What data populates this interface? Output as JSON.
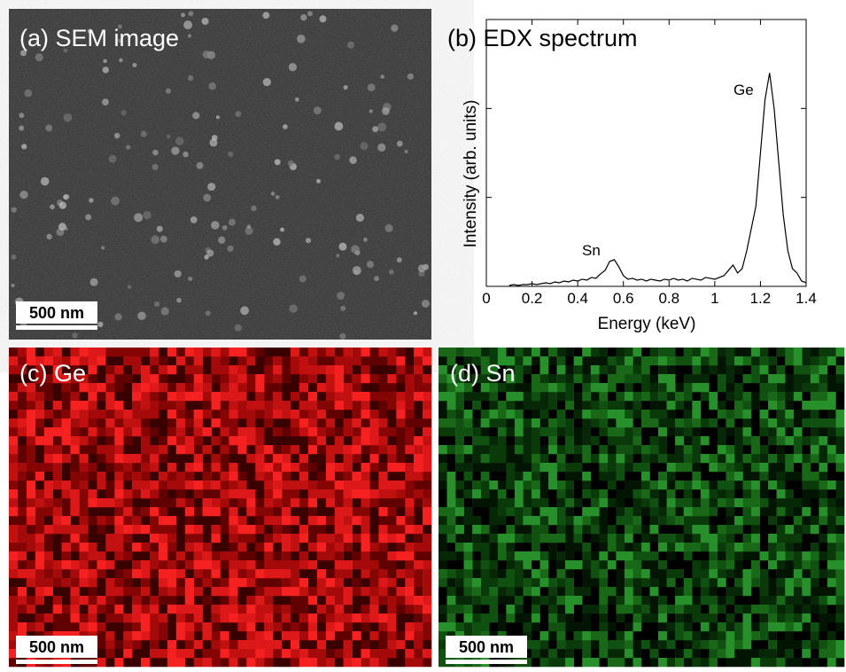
{
  "panels": {
    "a": {
      "label": "(a) SEM image",
      "scale_bar": "500 nm"
    },
    "c": {
      "label": "(c) Ge",
      "scale_bar": "500 nm"
    },
    "d": {
      "label": "(d) Sn",
      "scale_bar": "500 nm"
    }
  },
  "chart_data": {
    "type": "line",
    "title": "(b) EDX spectrum",
    "x_label": "Energy (keV)",
    "y_label": "Intensity (arb. units)",
    "annotations": [
      "Sn",
      "Ge"
    ],
    "xlim": [
      0,
      1.4
    ],
    "xticks": [
      0,
      0.2,
      0.4,
      0.6,
      0.8,
      1,
      1.2,
      1.4
    ],
    "ylim": [
      0,
      3
    ],
    "yticks": [
      1,
      2
    ],
    "ytick_labels": false,
    "color": "#000000",
    "x": [
      0.1,
      0.12,
      0.14,
      0.16,
      0.18,
      0.2,
      0.22,
      0.24,
      0.26,
      0.28,
      0.3,
      0.32,
      0.34,
      0.36,
      0.38,
      0.4,
      0.42,
      0.44,
      0.46,
      0.48,
      0.5,
      0.52,
      0.54,
      0.56,
      0.58,
      0.6,
      0.62,
      0.64,
      0.66,
      0.68,
      0.7,
      0.72,
      0.74,
      0.76,
      0.78,
      0.8,
      0.82,
      0.84,
      0.86,
      0.88,
      0.9,
      0.92,
      0.94,
      0.96,
      0.98,
      1.0,
      1.02,
      1.04,
      1.06,
      1.08,
      1.1,
      1.12,
      1.14,
      1.16,
      1.18,
      1.2,
      1.22,
      1.24,
      1.26,
      1.28,
      1.3,
      1.32,
      1.34,
      1.36,
      1.38,
      1.4
    ],
    "values": [
      0.01,
      0.02,
      0.01,
      0.02,
      0.02,
      0.03,
      0.02,
      0.03,
      0.04,
      0.03,
      0.05,
      0.04,
      0.06,
      0.05,
      0.07,
      0.06,
      0.08,
      0.07,
      0.1,
      0.09,
      0.14,
      0.18,
      0.28,
      0.3,
      0.22,
      0.12,
      0.08,
      0.09,
      0.07,
      0.08,
      0.06,
      0.08,
      0.07,
      0.06,
      0.08,
      0.07,
      0.09,
      0.07,
      0.08,
      0.06,
      0.09,
      0.08,
      0.07,
      0.1,
      0.09,
      0.08,
      0.1,
      0.12,
      0.18,
      0.24,
      0.15,
      0.2,
      0.4,
      0.65,
      0.9,
      1.5,
      2.1,
      2.4,
      2.0,
      1.4,
      0.8,
      0.4,
      0.2,
      0.15,
      0.06,
      0.04
    ]
  }
}
